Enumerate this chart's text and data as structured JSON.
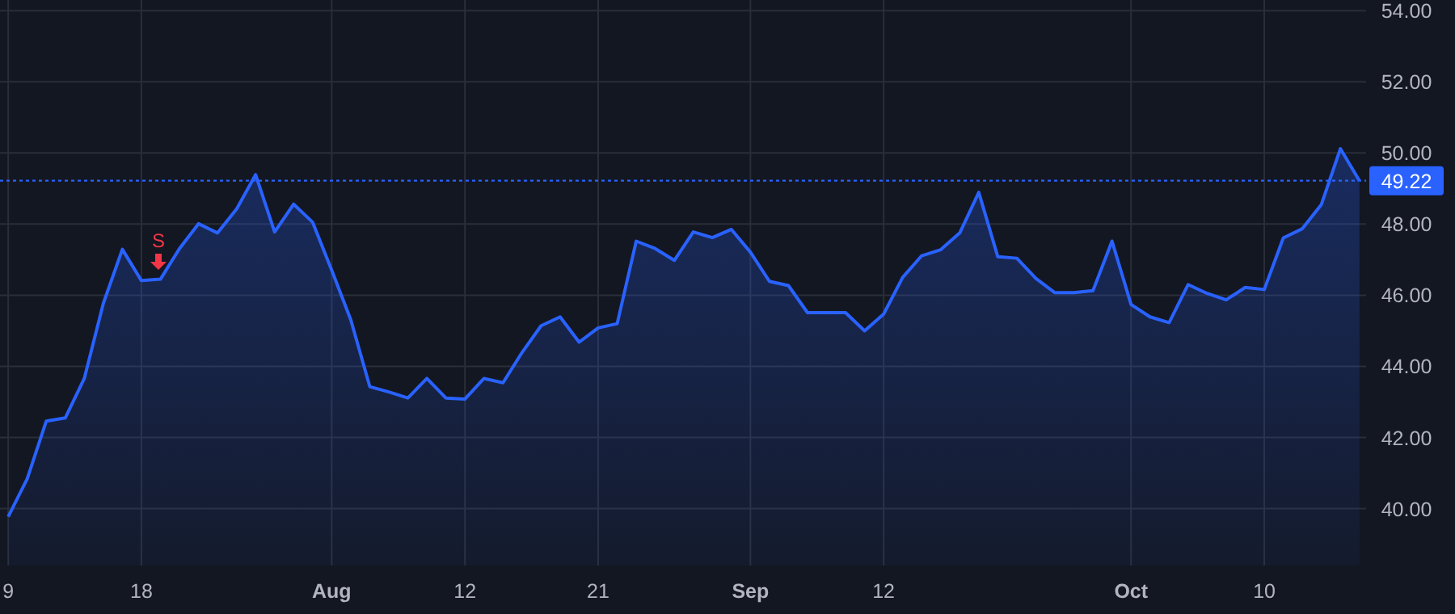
{
  "chart_data": {
    "type": "area",
    "categories": [
      "9",
      null,
      null,
      null,
      null,
      null,
      null,
      "18",
      null,
      null,
      null,
      null,
      null,
      null,
      null,
      null,
      null,
      "Aug",
      null,
      null,
      null,
      null,
      null,
      null,
      "12",
      null,
      null,
      null,
      null,
      null,
      null,
      "21",
      null,
      null,
      null,
      null,
      null,
      null,
      null,
      "Sep",
      null,
      null,
      null,
      null,
      null,
      null,
      "12",
      null,
      null,
      null,
      null,
      null,
      null,
      null,
      null,
      null,
      null,
      null,
      null,
      "Oct",
      null,
      null,
      null,
      null,
      null,
      null,
      "10",
      null,
      null,
      null,
      null,
      null
    ],
    "series": [
      {
        "color": "#2962ff",
        "values": [
          39.77,
          40.84,
          42.46,
          42.55,
          43.66,
          45.77,
          47.29,
          46.41,
          46.45,
          47.31,
          48.01,
          47.75,
          48.42,
          49.39,
          47.78,
          48.56,
          48.05,
          46.7,
          45.31,
          43.43,
          43.28,
          43.11,
          43.66,
          43.11,
          43.08,
          43.66,
          43.54,
          44.39,
          45.14,
          45.39,
          44.68,
          45.08,
          45.2,
          47.52,
          47.31,
          46.98,
          47.78,
          47.62,
          47.85,
          47.21,
          46.39,
          46.27,
          45.51,
          45.51,
          45.51,
          45.0,
          45.47,
          46.5,
          47.11,
          47.28,
          47.75,
          48.89,
          47.08,
          47.04,
          46.47,
          46.07,
          46.07,
          46.13,
          47.52,
          45.74,
          45.39,
          45.23,
          46.3,
          46.05,
          45.87,
          46.22,
          46.16,
          47.61,
          47.87,
          48.55,
          50.12,
          49.22
        ]
      }
    ],
    "ylim": [
      38.4,
      54.3
    ],
    "yticks": [
      {
        "value": 40,
        "label": "40.00"
      },
      {
        "value": 42,
        "label": "42.00"
      },
      {
        "value": 44,
        "label": "44.00"
      },
      {
        "value": 46,
        "label": "46.00"
      },
      {
        "value": 48,
        "label": "48.00"
      },
      {
        "value": 50,
        "label": "50.00"
      },
      {
        "value": 52,
        "label": "52.00"
      },
      {
        "value": 54,
        "label": "54.00"
      }
    ],
    "grid": true,
    "ref_lines": [
      {
        "axis": "y",
        "value": 49.22,
        "label": "49.22",
        "color": "#2962ff",
        "line_style": "dotted"
      }
    ],
    "annotations": [
      "S"
    ]
  }
}
